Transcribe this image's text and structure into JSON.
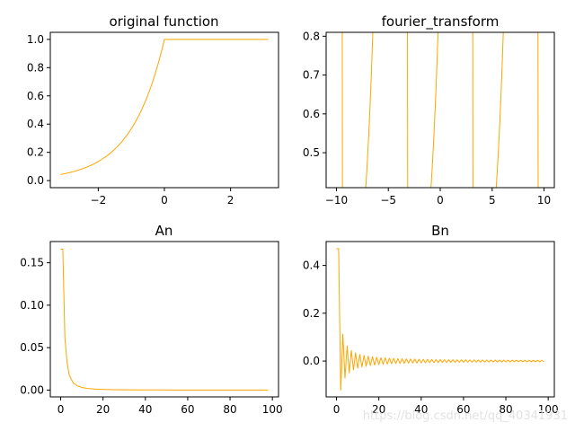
{
  "watermark": "https://blog.csdn.net/qq_40341931",
  "colors": {
    "series": "#ffa500",
    "axes": "#000000",
    "background": "#ffffff"
  },
  "chart_data": [
    {
      "id": "original",
      "type": "line",
      "title": "original function",
      "xlim": [
        -3.45,
        3.45
      ],
      "ylim": [
        -0.05,
        1.05
      ],
      "xticks": [
        -2,
        0,
        2
      ],
      "yticks": [
        0.0,
        0.2,
        0.4,
        0.6,
        0.8,
        1.0
      ],
      "ytick_decimals": 1,
      "description": "f(x) = exp(x) for x<0, 1 for x>=0, on [-pi, pi]",
      "series": [
        {
          "x": [
            -3.1416,
            -2.5,
            -2.0,
            -1.5,
            -1.0,
            -0.5,
            -0.2,
            0.0,
            1.0,
            2.0,
            3.0
          ],
          "y": [
            0.043,
            0.082,
            0.135,
            0.223,
            0.368,
            0.607,
            0.819,
            1.0,
            1.0,
            1.0,
            1.0
          ]
        }
      ]
    },
    {
      "id": "fourier",
      "type": "line",
      "title": "fourier_transform",
      "xlim": [
        -10.99,
        10.99
      ],
      "ylim": [
        0.41,
        0.81
      ],
      "xticks": [
        -10,
        -5,
        0,
        5,
        10
      ],
      "yticks": [
        0.5,
        0.6,
        0.7,
        0.8
      ],
      "ytick_decimals": 1,
      "description": "partial Fourier sum (100 terms) over [-10, 10]; periodic with period 2*pi, plateau ~0.76, lows ~0.44 with Gibbs ringing at x = -3pi, -pi, pi, 3pi",
      "series": [
        {
          "x": [
            -10.0,
            -9.42,
            -9.42,
            -6.28,
            -6.28,
            -3.14,
            -3.14,
            0.0,
            0.0,
            3.14,
            3.14,
            6.28,
            6.28,
            9.42,
            9.42,
            10.0
          ],
          "y": [
            0.76,
            0.76,
            0.44,
            0.76,
            0.76,
            0.76,
            0.44,
            0.76,
            0.76,
            0.76,
            0.44,
            0.76,
            0.76,
            0.76,
            0.44,
            0.47
          ]
        }
      ]
    },
    {
      "id": "an",
      "type": "line",
      "title": "An",
      "xlim": [
        -4.9,
        102.9
      ],
      "ylim": [
        -0.008,
        0.175
      ],
      "xticks": [
        0,
        20,
        40,
        60,
        80,
        100
      ],
      "yticks": [
        0.0,
        0.05,
        0.1,
        0.15
      ],
      "ytick_decimals": 2,
      "description": "cosine coefficients a_n for n = 0..98, starting near 0.165 and decaying to ~0",
      "series": [
        {
          "x": [
            0,
            1,
            2,
            3,
            5,
            10,
            20,
            40,
            60,
            98
          ],
          "y": [
            0.166,
            0.14,
            0.063,
            0.034,
            0.017,
            0.005,
            0.002,
            0.001,
            0.0,
            0.0
          ]
        }
      ]
    },
    {
      "id": "bn",
      "type": "line",
      "title": "Bn",
      "xlim": [
        -4.9,
        102.9
      ],
      "ylim": [
        -0.15,
        0.5
      ],
      "xticks": [
        0,
        20,
        40,
        60,
        80,
        100
      ],
      "yticks": [
        0.0,
        0.2,
        0.4
      ],
      "ytick_decimals": 1,
      "description": "sine coefficients b_n for n = 0..98, starting near 0.47 and oscillating with decaying amplitude around 0",
      "series": [
        {
          "x": [
            0,
            1,
            2,
            3,
            4,
            10,
            20,
            50,
            98
          ],
          "y": [
            0.47,
            0.0,
            -0.11,
            0.11,
            -0.07,
            0.03,
            0.015,
            0.006,
            0.0
          ]
        }
      ]
    }
  ]
}
